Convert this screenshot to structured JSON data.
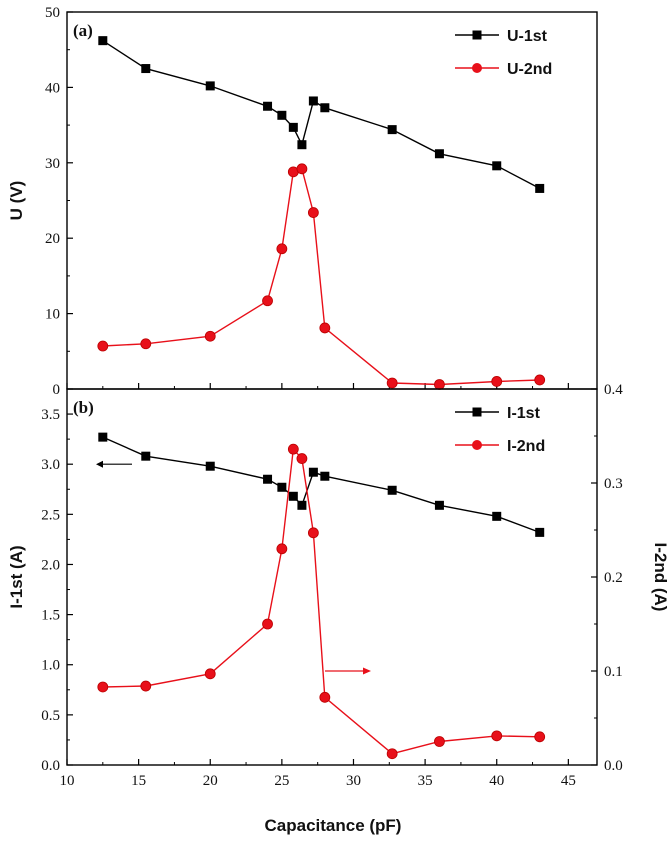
{
  "chart_data": [
    {
      "panel_label": "(a)",
      "type": "line",
      "ylabel": "U (V)",
      "ylim": [
        0,
        50
      ],
      "yticks": [
        "0",
        "10",
        "20",
        "30",
        "40",
        "50"
      ],
      "xlim": [
        10,
        47
      ],
      "grid": false,
      "legend_placement": "top-right",
      "series": [
        {
          "name": "U-1st",
          "color": "#000000",
          "marker": "square",
          "x": [
            12.5,
            15.5,
            20,
            24,
            25,
            25.8,
            26.4,
            27.2,
            28,
            32.7,
            36,
            40,
            43
          ],
          "y": [
            46.2,
            42.5,
            40.2,
            37.5,
            36.3,
            34.7,
            32.4,
            38.2,
            37.3,
            34.4,
            31.2,
            29.6,
            26.6
          ]
        },
        {
          "name": "U-2nd",
          "color": "#e8101a",
          "marker": "circle",
          "x": [
            12.5,
            15.5,
            20,
            24,
            25,
            25.8,
            26.4,
            27.2,
            28,
            32.7,
            36,
            40,
            43
          ],
          "y": [
            5.7,
            6.0,
            7.0,
            11.7,
            18.6,
            28.8,
            29.2,
            23.4,
            8.1,
            0.8,
            0.6,
            1.0,
            1.2
          ]
        }
      ]
    },
    {
      "panel_label": "(b)",
      "type": "line",
      "xlabel": "Capacitance (pF)",
      "xlim": [
        10,
        47
      ],
      "xticks": [
        "10",
        "15",
        "20",
        "25",
        "30",
        "35",
        "40",
        "45"
      ],
      "ylabel": "I-1st (A)",
      "ylim": [
        0,
        3.75
      ],
      "yticks": [
        "0.0",
        "0.5",
        "1.0",
        "1.5",
        "2.0",
        "2.5",
        "3.0",
        "3.5"
      ],
      "ylabel_right": "I-2nd (A)",
      "ylim_right": [
        0,
        0.4
      ],
      "yticks_right": [
        "0.0",
        "0.1",
        "0.2",
        "0.3",
        "0.4"
      ],
      "grid": false,
      "legend_placement": "top-right",
      "annotations": [
        "left arrow: I-1st uses left axis",
        "right arrow: I-2nd uses right axis"
      ],
      "series": [
        {
          "name": "I-1st",
          "axis": "left",
          "color": "#000000",
          "marker": "square",
          "x": [
            12.5,
            15.5,
            20,
            24,
            25,
            25.8,
            26.4,
            27.2,
            28,
            32.7,
            36,
            40,
            43
          ],
          "y": [
            3.27,
            3.08,
            2.98,
            2.85,
            2.77,
            2.68,
            2.59,
            2.92,
            2.88,
            2.74,
            2.59,
            2.48,
            2.32
          ]
        },
        {
          "name": "I-2nd",
          "axis": "right",
          "color": "#e8101a",
          "marker": "circle",
          "x": [
            12.5,
            15.5,
            20,
            24,
            25,
            25.8,
            26.4,
            27.2,
            28,
            32.7,
            36,
            40,
            43
          ],
          "y": [
            0.083,
            0.084,
            0.097,
            0.15,
            0.23,
            0.336,
            0.326,
            0.247,
            0.072,
            0.012,
            0.025,
            0.031,
            0.03
          ]
        }
      ]
    }
  ]
}
